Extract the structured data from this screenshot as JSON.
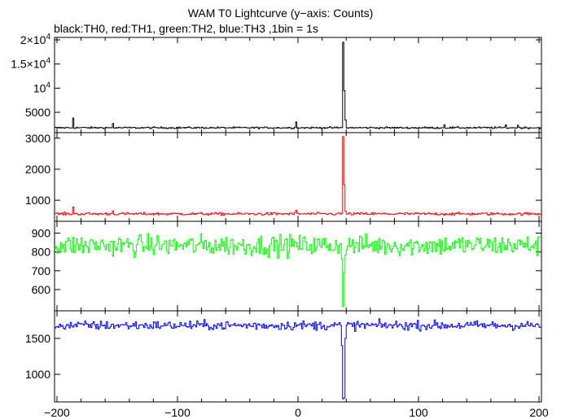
{
  "chart_data": {
    "type": "line",
    "title": "WAM T0 Lightcurve (y−axis: Counts)",
    "subtitle": "black:TH0, red:TH1, green:TH2, blue:TH3 ,1bin = 1s",
    "x": {
      "range": [
        -202,
        202
      ],
      "bin": 1,
      "ticks": [
        -200,
        -100,
        0,
        100,
        200
      ],
      "tick_labels": [
        "−200",
        "−100",
        "0",
        "100",
        "200"
      ]
    },
    "panels": [
      {
        "name": "TH0",
        "color": "#000000",
        "baseline": 1800,
        "noise": 90,
        "ylim": [
          1300,
          20000
        ],
        "yticks": [
          5000,
          10000,
          15000,
          20000
        ],
        "ytick_labels": [
          {
            "base": "5000",
            "sup": ""
          },
          {
            "base": "10",
            "sup": "4"
          },
          {
            "base": "1.5×10",
            "sup": "4"
          },
          {
            "base": "2×10",
            "sup": "4"
          }
        ],
        "features": [
          {
            "x": 37,
            "value": 19500
          },
          {
            "x": 38,
            "value": 9500
          },
          {
            "x": 39,
            "value": 3400
          },
          {
            "x": -187,
            "value": 3800
          },
          {
            "x": -154,
            "value": 2700
          },
          {
            "x": -2,
            "value": 3000
          },
          {
            "x": 121,
            "value": 2400
          },
          {
            "x": 172,
            "value": 2400
          },
          {
            "x": 182,
            "value": 2300
          }
        ]
      },
      {
        "name": "TH1",
        "color": "#ff0000",
        "baseline": 560,
        "noise": 22,
        "ylim": [
          400,
          3100
        ],
        "yticks": [
          1000,
          2000,
          3000
        ],
        "ytick_labels": [
          {
            "base": "1000",
            "sup": ""
          },
          {
            "base": "2000",
            "sup": ""
          },
          {
            "base": "3000",
            "sup": ""
          }
        ],
        "features": [
          {
            "x": 37,
            "value": 3050
          },
          {
            "x": 38,
            "value": 1500
          },
          {
            "x": 39,
            "value": 650
          },
          {
            "x": -187,
            "value": 780
          },
          {
            "x": -154,
            "value": 660
          },
          {
            "x": -2,
            "value": 680
          }
        ]
      },
      {
        "name": "TH2",
        "color": "#00ff00",
        "baseline": 835,
        "noise": 28,
        "ylim": [
          500,
          950
        ],
        "yticks": [
          600,
          700,
          800,
          900
        ],
        "ytick_labels": [
          {
            "base": "600",
            "sup": ""
          },
          {
            "base": "700",
            "sup": ""
          },
          {
            "base": "800",
            "sup": ""
          },
          {
            "base": "900",
            "sup": ""
          }
        ],
        "features": [
          {
            "x": 36,
            "value": 760
          },
          {
            "x": 37,
            "value": 510
          },
          {
            "x": 38,
            "value": 690
          }
        ]
      },
      {
        "name": "TH3",
        "color": "#0000ff",
        "baseline": 1680,
        "noise": 32,
        "ylim": [
          650,
          1850
        ],
        "yticks": [
          1000,
          1500
        ],
        "ytick_labels": [
          {
            "base": "1000",
            "sup": ""
          },
          {
            "base": "1500",
            "sup": ""
          }
        ],
        "features": [
          {
            "x": 36,
            "value": 1400
          },
          {
            "x": 37,
            "value": 660
          },
          {
            "x": 38,
            "value": 670
          },
          {
            "x": 39,
            "value": 1500
          }
        ]
      }
    ]
  }
}
